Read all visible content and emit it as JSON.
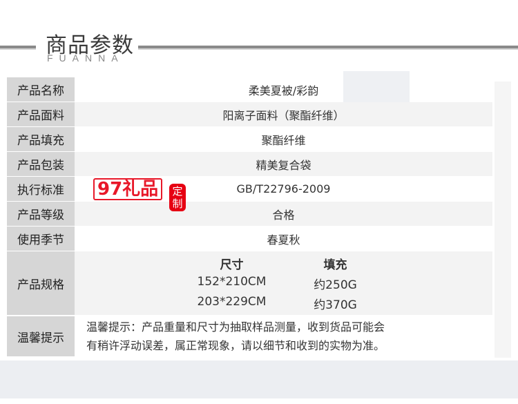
{
  "header": {
    "title": "商品参数",
    "subtitle": "FUANNA"
  },
  "rows": [
    {
      "label": "产品名称",
      "value": "柔美夏被/彩韵"
    },
    {
      "label": "产品面料",
      "value": "阳离子面料（聚酯纤维）"
    },
    {
      "label": "产品填充",
      "value": "聚酯纤维"
    },
    {
      "label": "产品包装",
      "value": "精美复合袋"
    },
    {
      "label": "执行标准",
      "value": "GB/T22796-2009"
    },
    {
      "label": "产品等级",
      "value": "合格"
    },
    {
      "label": "使用季节",
      "value": "春夏秋"
    }
  ],
  "spec": {
    "label": "产品规格",
    "col1": "尺寸",
    "col2": "填充",
    "r1c1": "152*210CM",
    "r1c2": "约250G",
    "r2c1": "203*229CM",
    "r2c2": "约370G"
  },
  "tip": {
    "label": "温馨提示",
    "line1": "温馨提示：产品重量和尺寸为抽取样品测量，收到货品可能会",
    "line2": "有稍许浮动误差，属正常现象，请以细节和收到的实物为准。"
  },
  "watermark": {
    "text": "97礼品",
    "seal": "定制",
    "color": "#e60012"
  }
}
